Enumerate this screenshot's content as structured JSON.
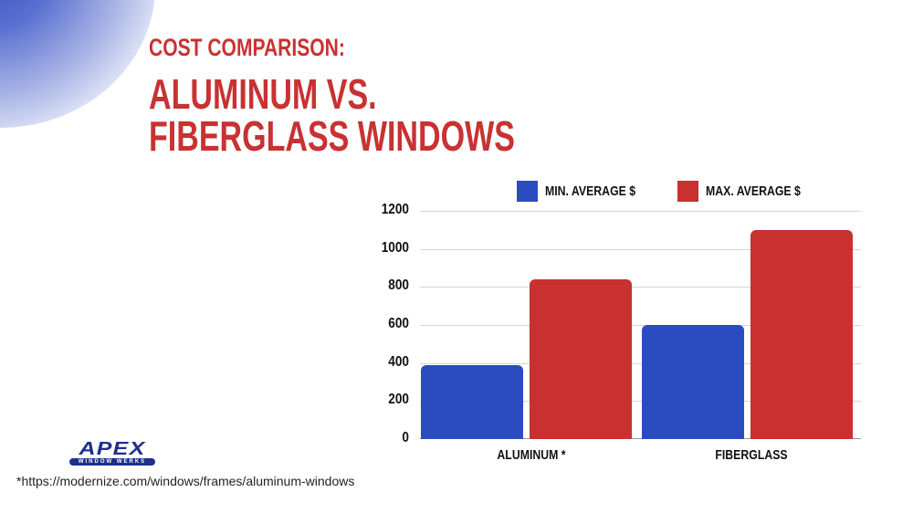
{
  "header": {
    "subtitle": "COST COMPARISON:",
    "title_line1": "ALUMINUM VS.",
    "title_line2": "FIBERGLASS WINDOWS"
  },
  "colors": {
    "title_red": "#c83232",
    "min_series": "#2b4bc0",
    "max_series": "#c93030",
    "corner_blue": "#2f48c4"
  },
  "legend": [
    {
      "label": "MIN. AVERAGE $",
      "color": "#2b4bc0"
    },
    {
      "label": "MAX. AVERAGE $",
      "color": "#c93030"
    }
  ],
  "y_ticks": [
    "0",
    "200",
    "400",
    "600",
    "800",
    "1000",
    "1200"
  ],
  "x_labels": [
    "ALUMINUM *",
    "FIBERGLASS"
  ],
  "logo": {
    "main": "APEX",
    "band": "WINDOW WERKS"
  },
  "footnote": "*https://modernize.com/windows/frames/aluminum-windows",
  "chart_data": {
    "type": "bar",
    "title": "Cost Comparison: Aluminum vs. Fiberglass Windows",
    "categories": [
      "ALUMINUM *",
      "FIBERGLASS"
    ],
    "series": [
      {
        "name": "MIN. AVERAGE $",
        "values": [
          390,
          600
        ]
      },
      {
        "name": "MAX. AVERAGE $",
        "values": [
          840,
          1100
        ]
      }
    ],
    "xlabel": "",
    "ylabel": "",
    "ylim": [
      0,
      1200
    ],
    "yticks": [
      0,
      200,
      400,
      600,
      800,
      1000,
      1200
    ],
    "grid": true,
    "legend_position": "top"
  }
}
